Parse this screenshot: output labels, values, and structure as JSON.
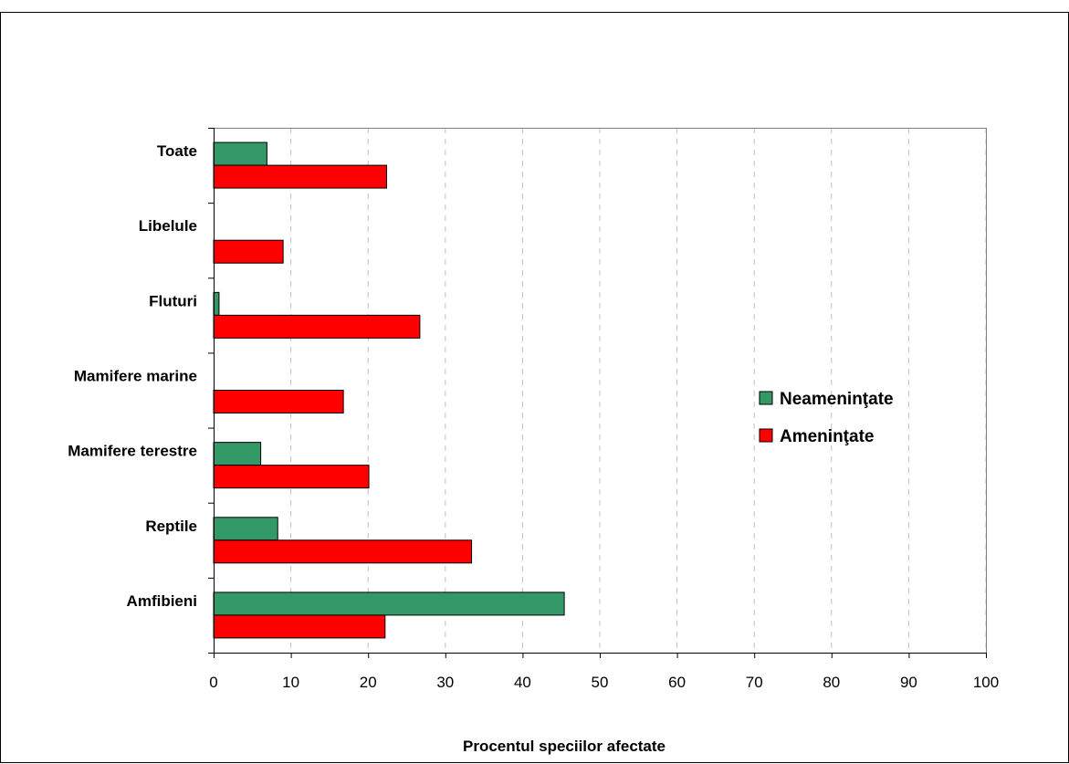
{
  "chart_data": {
    "type": "bar",
    "orientation": "horizontal",
    "categories": [
      "Amfibieni",
      "Reptile",
      "Mamifere terestre",
      "Mamifere marine",
      "Fluturi",
      "Libelule",
      "Toate"
    ],
    "series": [
      {
        "name": "Neameninţate",
        "color": "#339966",
        "values": [
          45.4,
          8.3,
          6.1,
          0,
          0.7,
          0,
          6.9
        ]
      },
      {
        "name": "Ameninţate",
        "color": "#ff0000",
        "values": [
          22.2,
          33.4,
          20.1,
          16.8,
          26.7,
          9.0,
          22.4
        ]
      }
    ],
    "xlabel": "Procentul speciilor afectate",
    "xlim": [
      0,
      100
    ],
    "xticks": [
      0,
      10,
      20,
      30,
      40,
      50,
      60,
      70,
      80,
      90,
      100
    ],
    "grid": "vertical dashed",
    "legend_position": "right"
  }
}
